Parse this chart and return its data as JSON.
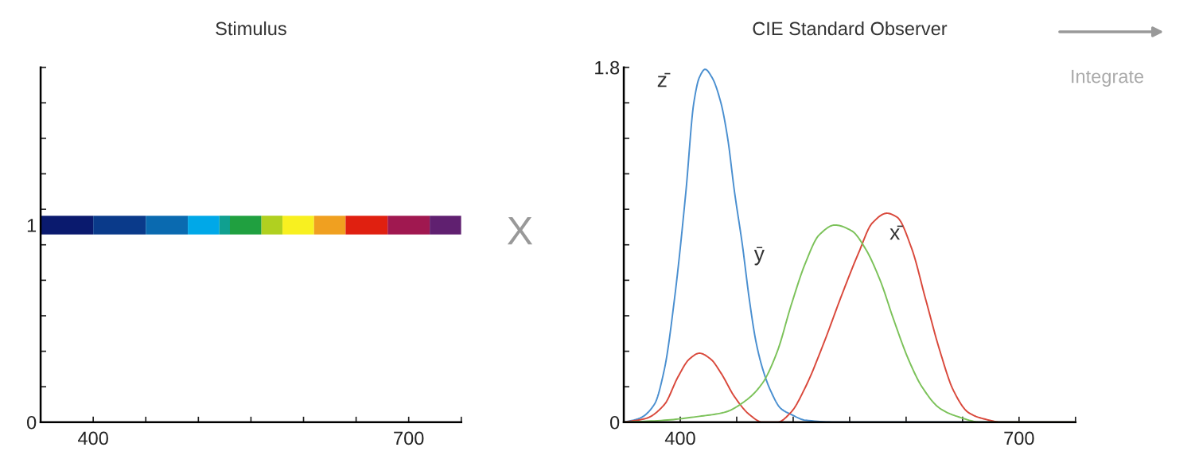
{
  "chart_data": [
    {
      "type": "line",
      "title": "Stimulus",
      "series": [
        {
          "color": "#0a1a6e",
          "x": [
            350,
            400
          ],
          "values": [
            1,
            1
          ]
        },
        {
          "color": "#0a3a8a",
          "x": [
            400,
            450
          ],
          "values": [
            1,
            1
          ]
        },
        {
          "color": "#0a6ab0",
          "x": [
            450,
            490
          ],
          "values": [
            1,
            1
          ]
        },
        {
          "color": "#00a8e8",
          "x": [
            490,
            520
          ],
          "values": [
            1,
            1
          ]
        },
        {
          "color": "#10a090",
          "x": [
            520,
            530
          ],
          "values": [
            1,
            1
          ]
        },
        {
          "color": "#20a040",
          "x": [
            530,
            560
          ],
          "values": [
            1,
            1
          ]
        },
        {
          "color": "#b0d020",
          "x": [
            560,
            580
          ],
          "values": [
            1,
            1
          ]
        },
        {
          "color": "#f8f020",
          "x": [
            580,
            610
          ],
          "values": [
            1,
            1
          ]
        },
        {
          "color": "#f0a020",
          "x": [
            610,
            640
          ],
          "values": [
            1,
            1
          ]
        },
        {
          "color": "#e02010",
          "x": [
            640,
            680
          ],
          "values": [
            1,
            1
          ]
        },
        {
          "color": "#a01850",
          "x": [
            680,
            720
          ],
          "values": [
            1,
            1
          ]
        },
        {
          "color": "#602070",
          "x": [
            720,
            750
          ],
          "values": [
            1,
            1
          ]
        }
      ],
      "xlim": [
        350,
        750
      ],
      "ylim": [
        0,
        1.8
      ],
      "xticks": [
        {
          "value": 350,
          "label": null
        },
        400,
        {
          "value": 450,
          "label": null
        },
        {
          "value": 500,
          "label": null
        },
        {
          "value": 550,
          "label": null
        },
        {
          "value": 600,
          "label": null
        },
        {
          "value": 650,
          "label": null
        },
        700,
        {
          "value": 750,
          "label": null
        }
      ],
      "yticks": [
        0,
        {
          "value": 0.18,
          "label": null
        },
        {
          "value": 0.36,
          "label": null
        },
        {
          "value": 0.54,
          "label": null
        },
        {
          "value": 0.72,
          "label": null
        },
        {
          "value": 0.9,
          "label": null
        },
        1,
        {
          "value": 1.08,
          "label": null
        },
        {
          "value": 1.26,
          "label": null
        },
        {
          "value": 1.44,
          "label": null
        },
        {
          "value": 1.62,
          "label": null
        },
        {
          "value": 1.8,
          "label": null
        }
      ],
      "grid": false,
      "legend": false
    },
    {
      "type": "line",
      "title": "CIE Standard Observer",
      "series": [
        {
          "color": "#4a8fd0",
          "x": [
            350,
            364,
            377,
            386,
            395,
            405,
            412,
            417,
            422,
            428,
            436,
            442,
            448,
            455,
            461,
            467,
            473,
            480,
            489,
            498,
            511,
            542,
            750
          ],
          "values": [
            0,
            0.02,
            0.09,
            0.27,
            0.63,
            1.17,
            1.62,
            1.75,
            1.79,
            1.75,
            1.62,
            1.44,
            1.17,
            0.9,
            0.63,
            0.41,
            0.27,
            0.16,
            0.07,
            0.04,
            0.01,
            0,
            0
          ]
        },
        {
          "color": "#d9483b",
          "x": [
            350,
            370,
            386,
            398,
            408,
            417,
            427,
            436,
            448,
            461,
            473,
            486,
            498,
            511,
            527,
            542,
            558,
            570,
            583,
            592,
            605,
            617,
            630,
            642,
            655,
            667,
            686,
            750
          ],
          "values": [
            0,
            0.02,
            0.09,
            0.23,
            0.32,
            0.35,
            0.32,
            0.25,
            0.13,
            0.04,
            0,
            0,
            0.05,
            0.18,
            0.4,
            0.63,
            0.86,
            1.01,
            1.06,
            1.04,
            0.88,
            0.63,
            0.36,
            0.16,
            0.05,
            0.02,
            0,
            0
          ]
        },
        {
          "color": "#7cc25a",
          "x": [
            350,
            386,
            417,
            439,
            458,
            473,
            486,
            498,
            511,
            523,
            537,
            552,
            564,
            577,
            589,
            602,
            614,
            630,
            645,
            667,
            750
          ],
          "values": [
            0,
            0.01,
            0.03,
            0.05,
            0.11,
            0.2,
            0.36,
            0.59,
            0.81,
            0.95,
            1.0,
            0.97,
            0.88,
            0.72,
            0.52,
            0.32,
            0.18,
            0.07,
            0.03,
            0,
            0
          ]
        }
      ],
      "xlim": [
        350,
        750
      ],
      "ylim": [
        0,
        1.8
      ],
      "xticks": [
        {
          "value": 350,
          "label": null
        },
        400,
        {
          "value": 450,
          "label": null
        },
        {
          "value": 500,
          "label": null
        },
        {
          "value": 550,
          "label": null
        },
        {
          "value": 600,
          "label": null
        },
        {
          "value": 650,
          "label": null
        },
        700,
        {
          "value": 750,
          "label": null
        }
      ],
      "yticks": [
        0,
        {
          "value": 0.18,
          "label": null
        },
        {
          "value": 0.36,
          "label": null
        },
        {
          "value": 0.54,
          "label": null
        },
        {
          "value": 0.72,
          "label": null
        },
        {
          "value": 0.9,
          "label": null
        },
        {
          "value": 1.08,
          "label": null
        },
        {
          "value": 1.26,
          "label": null
        },
        {
          "value": 1.44,
          "label": null
        },
        {
          "value": 1.62,
          "label": null
        },
        1.8
      ],
      "annotations": [
        "z̄",
        "ȳ",
        "x̄",
        "X",
        "Integrate"
      ],
      "grid": false,
      "legend": false
    }
  ]
}
